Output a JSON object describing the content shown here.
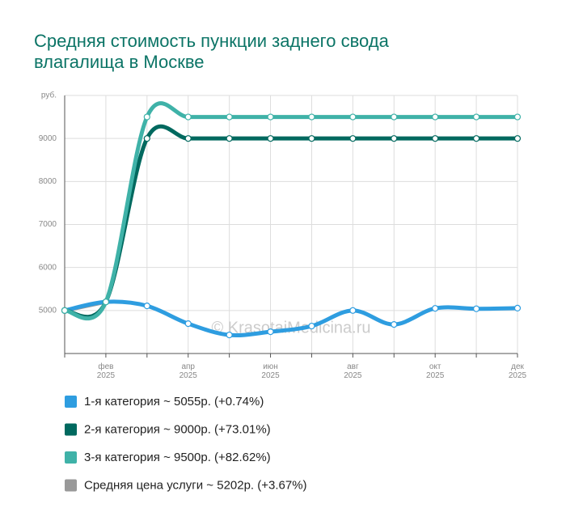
{
  "chart_data": {
    "type": "line",
    "title": "Средняя стоимость пункции заднего свода влагалища в Москве",
    "watermark": "© KrasotaiMedicina.ru",
    "categories": [
      null,
      "фев 2025",
      null,
      "апр 2025",
      null,
      "июн 2025",
      null,
      "авг 2025",
      null,
      "окт 2025",
      null,
      "дек 2025"
    ],
    "ylim": [
      4000,
      10000
    ],
    "yticks": [
      5000,
      6000,
      7000,
      8000,
      9000,
      {
        "value": 10000,
        "label": "руб."
      }
    ],
    "grid": true,
    "legend": "bottom",
    "series": [
      {
        "name": "1-я категория ~ 5055р. (+0.74%)",
        "color": "#2e9de0",
        "values": [
          5000,
          5200,
          5107,
          4694,
          4431,
          4506,
          4638,
          5000,
          4675,
          5050,
          5040,
          5055
        ]
      },
      {
        "name": "2-я категория ~ 9000р. (+73.01%)",
        "color": "#00695f",
        "values": [
          5000,
          5200,
          9000,
          9000,
          9000,
          9000,
          9000,
          9000,
          9000,
          9000,
          9000,
          9000
        ]
      },
      {
        "name": "3-я категория ~ 9500р. (+82.62%)",
        "color": "#3fb2a8",
        "values": [
          5000,
          5200,
          9500,
          9500,
          9500,
          9500,
          9500,
          9500,
          9500,
          9500,
          9500,
          9500
        ]
      },
      {
        "name": "Средняя цена услуги ~ 5202р. (+3.67%)",
        "color": "#999999",
        "values": [
          5000,
          5202,
          null,
          null,
          null,
          null,
          null,
          null,
          null,
          null,
          null,
          null
        ]
      }
    ]
  }
}
